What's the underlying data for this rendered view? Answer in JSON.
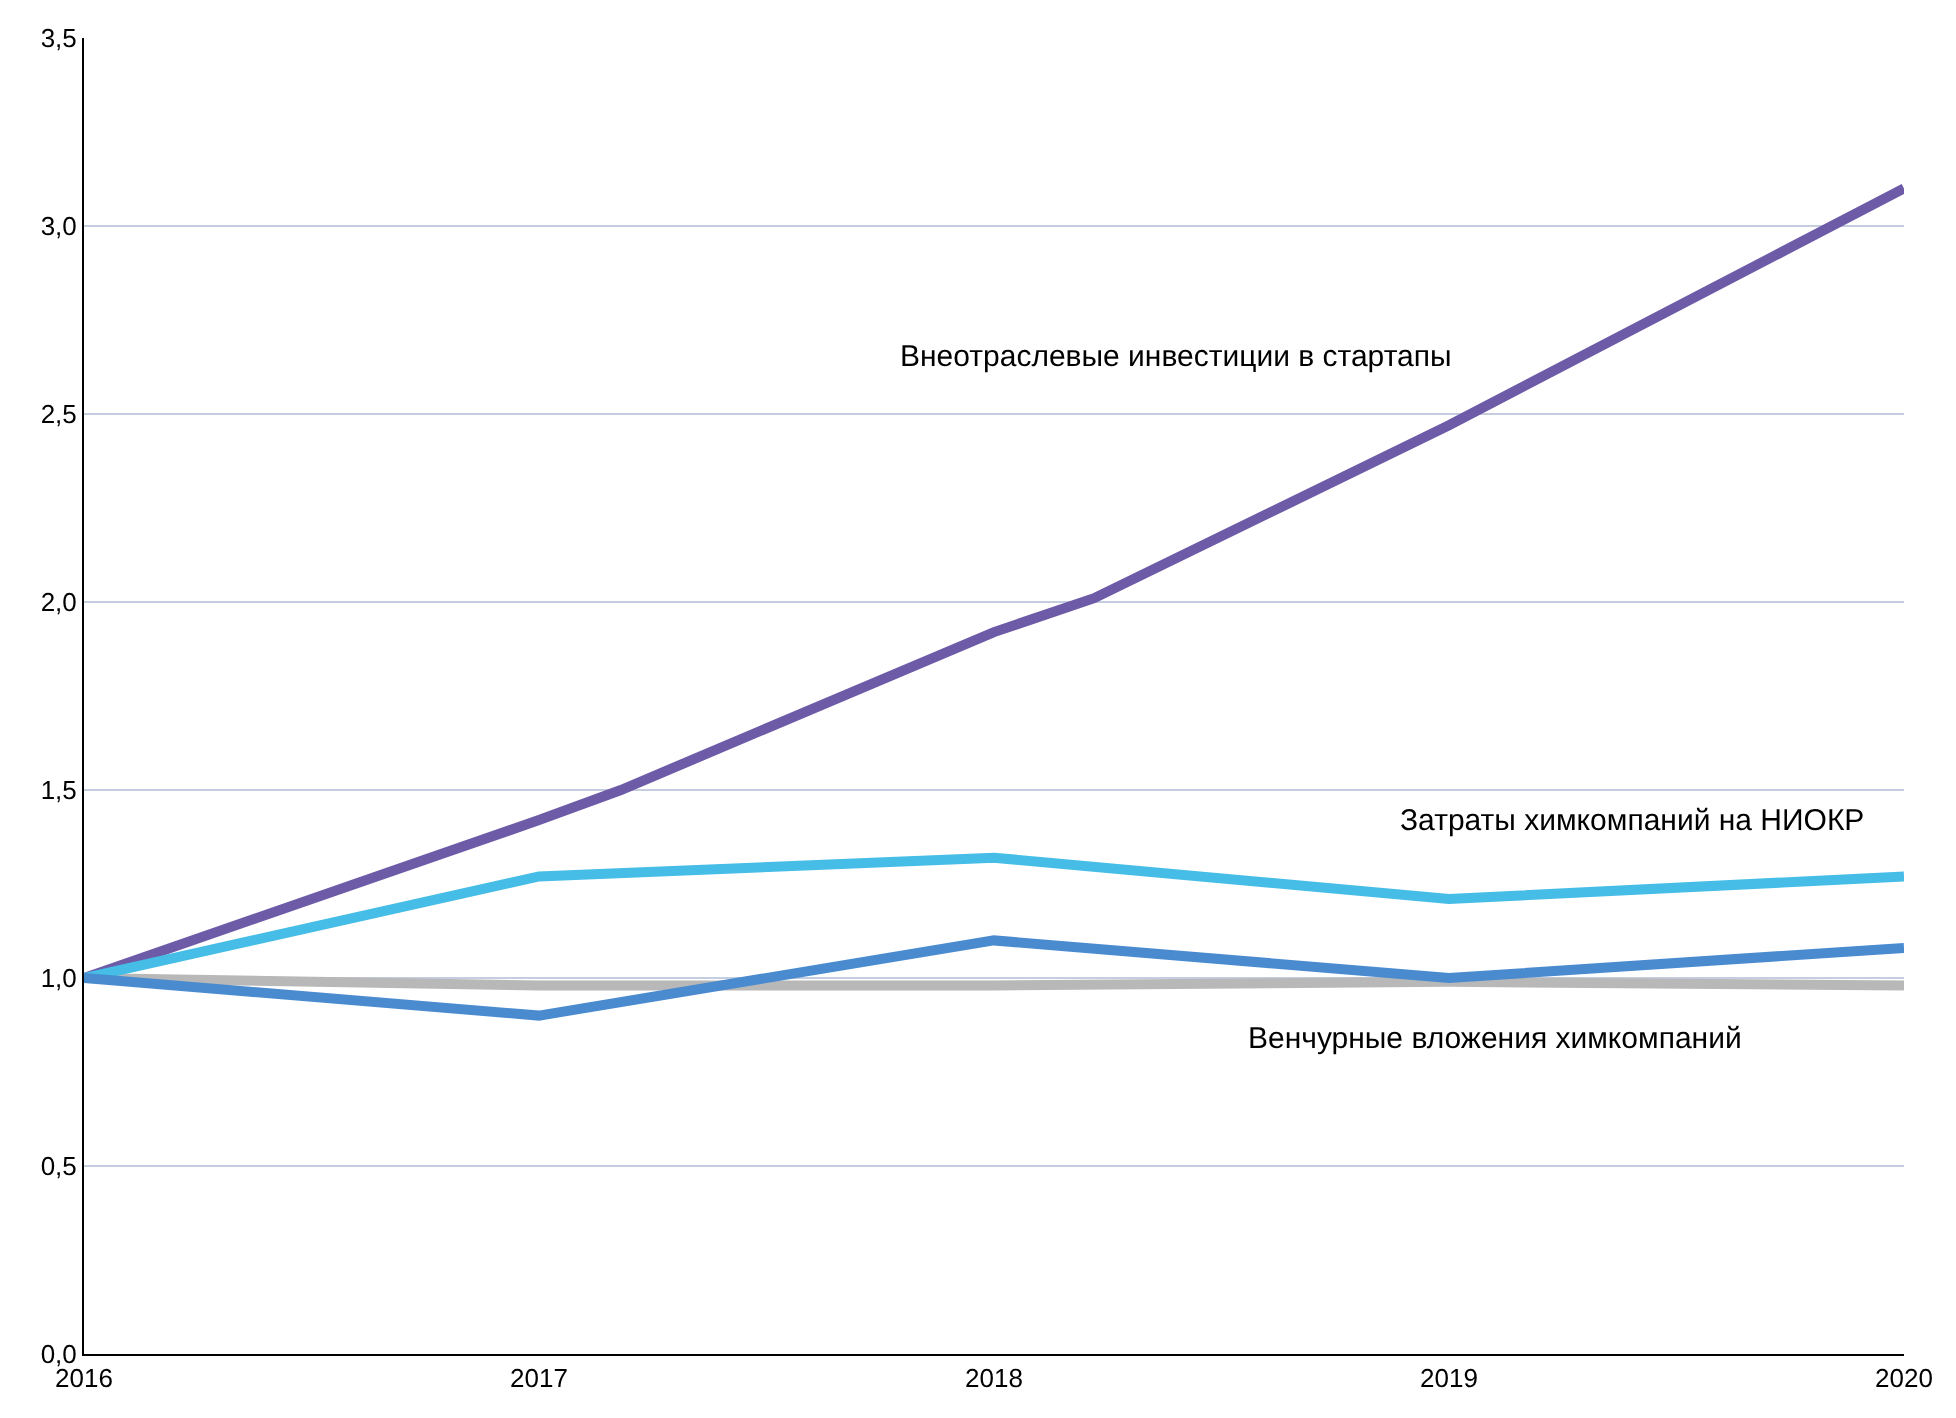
{
  "chart_data": {
    "type": "line",
    "xlim": [
      2016,
      2020
    ],
    "xticks": [
      2016,
      2017,
      2018,
      2019,
      2020
    ],
    "ylim": [
      0,
      3.5
    ],
    "yticks": [
      {
        "value": 0,
        "label": "0,0"
      },
      {
        "value": 0.5,
        "label": "0,5"
      },
      {
        "value": 1,
        "label": "1,0"
      },
      {
        "value": 1.5,
        "label": "1,5"
      },
      {
        "value": 2,
        "label": "2,0"
      },
      {
        "value": 2.5,
        "label": "2,5"
      },
      {
        "value": 3,
        "label": "3,0"
      },
      {
        "value": 3.5,
        "label": "3,5"
      }
    ],
    "grid": "y",
    "legend": false,
    "marker": "none",
    "line_style": "solid",
    "series": [
      {
        "name": "Внеотраслевые инвестиции в стартапы",
        "color": "#6d5ba8",
        "x": [
          2016,
          2017,
          2017.18,
          2018,
          2018.22,
          2019,
          2020
        ],
        "values": [
          1.0,
          1.42,
          1.5,
          1.92,
          2.01,
          2.47,
          3.1
        ]
      },
      {
        "name": "Затраты химкомпаний на НИОКР",
        "color": "#45bde6",
        "x": [
          2016,
          2017,
          2018,
          2019,
          2020
        ],
        "values": [
          1.0,
          1.27,
          1.32,
          1.21,
          1.27
        ]
      },
      {
        "color": "#b8b8b8",
        "x": [
          2016,
          2017,
          2018,
          2019,
          2020
        ],
        "values": [
          1.0,
          0.98,
          0.98,
          0.99,
          0.98
        ]
      },
      {
        "name": "Венчурные вложения химкомпаний",
        "color": "#4a8bd0",
        "x": [
          2016,
          2017,
          2018,
          2019,
          2020
        ],
        "values": [
          1.0,
          0.9,
          1.1,
          1.0,
          1.08
        ]
      }
    ]
  }
}
